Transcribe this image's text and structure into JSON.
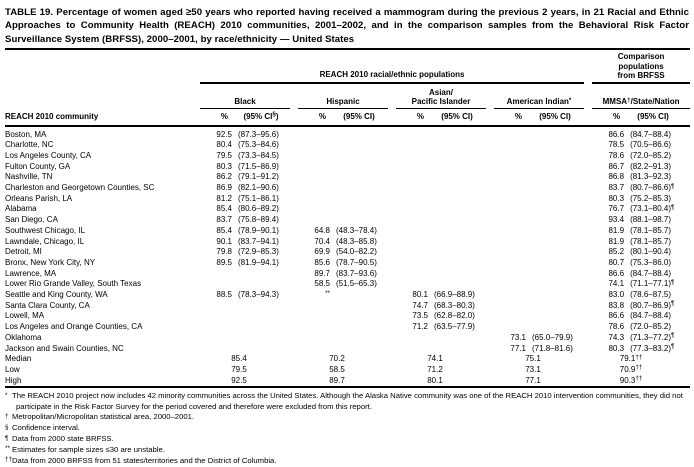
{
  "title": "TABLE 19. Percentage of women aged ≥50 years who reported having received a mammogram during the previous 2 years, in 21 Racial and Ethnic Approaches to Community Health (REACH) 2010 communities, 2001–2002, and in the comparison samples from the Behavioral Risk Factor Surveillance System (BRFSS), 2000–2001, by race/ethnicity — United States",
  "header": {
    "reach_span": "REACH 2010 racial/ethnic populations",
    "comparison_span": "Comparison\npopulations\nfrom BRFSS",
    "row_label": "REACH 2010 community",
    "groups": [
      {
        "label": "Black",
        "pct": "%",
        "ci": "(95% CI§)"
      },
      {
        "label": "Hispanic",
        "pct": "%",
        "ci": "(95% CI)"
      },
      {
        "label": "Asian/\nPacific Islander",
        "pct": "%",
        "ci": "(95% CI)"
      },
      {
        "label": "American Indian*",
        "pct": "%",
        "ci": "(95% CI)"
      },
      {
        "label": "MMSA†/State/Nation",
        "pct": "%",
        "ci": "(95% CI)"
      }
    ]
  },
  "rows": [
    {
      "community": "Boston, MA",
      "black": [
        "92.5",
        "(87.3–95.6)"
      ],
      "hispanic": [
        "",
        ""
      ],
      "asian": [
        "",
        ""
      ],
      "american_indian": [
        "",
        ""
      ],
      "mmsa": [
        "86.6",
        "(84.7–88.4)"
      ]
    },
    {
      "community": "Charlotte, NC",
      "black": [
        "80.4",
        "(75.3–84.6)"
      ],
      "hispanic": [
        "",
        ""
      ],
      "asian": [
        "",
        ""
      ],
      "american_indian": [
        "",
        ""
      ],
      "mmsa": [
        "78.5",
        "(70.5–86.6)"
      ]
    },
    {
      "community": "Los Angeles County, CA",
      "black": [
        "79.5",
        "(73.3–84.5)"
      ],
      "hispanic": [
        "",
        ""
      ],
      "asian": [
        "",
        ""
      ],
      "american_indian": [
        "",
        ""
      ],
      "mmsa": [
        "78.6",
        "(72.0–85.2)"
      ]
    },
    {
      "community": "Fulton County, GA",
      "black": [
        "80.3",
        "(71.5–86.9)"
      ],
      "hispanic": [
        "",
        ""
      ],
      "asian": [
        "",
        ""
      ],
      "american_indian": [
        "",
        ""
      ],
      "mmsa": [
        "86.7",
        "(82.2–91.3)"
      ]
    },
    {
      "community": "Nashville, TN",
      "black": [
        "86.2",
        "(79.1–91.2)"
      ],
      "hispanic": [
        "",
        ""
      ],
      "asian": [
        "",
        ""
      ],
      "american_indian": [
        "",
        ""
      ],
      "mmsa": [
        "86.8",
        "(81.3–92.3)"
      ]
    },
    {
      "community": "Charleston and Georgetown Counties, SC",
      "black": [
        "86.9",
        "(82.1–90.6)"
      ],
      "hispanic": [
        "",
        ""
      ],
      "asian": [
        "",
        ""
      ],
      "american_indian": [
        "",
        ""
      ],
      "mmsa": [
        "83.7",
        "(80.7–86.6)¶"
      ]
    },
    {
      "community": "Orleans Parish, LA",
      "black": [
        "81.2",
        "(75.1–86.1)"
      ],
      "hispanic": [
        "",
        ""
      ],
      "asian": [
        "",
        ""
      ],
      "american_indian": [
        "",
        ""
      ],
      "mmsa": [
        "80.3",
        "(75.2–85.3)"
      ]
    },
    {
      "community": "Alabama",
      "black": [
        "85.4",
        "(80.6–89.2)"
      ],
      "hispanic": [
        "",
        ""
      ],
      "asian": [
        "",
        ""
      ],
      "american_indian": [
        "",
        ""
      ],
      "mmsa": [
        "76.7",
        "(73.1–80.4)¶"
      ]
    },
    {
      "community": "San Diego, CA",
      "black": [
        "83.7",
        "(75.8–89.4)"
      ],
      "hispanic": [
        "",
        ""
      ],
      "asian": [
        "",
        ""
      ],
      "american_indian": [
        "",
        ""
      ],
      "mmsa": [
        "93.4",
        "(88.1–98.7)"
      ]
    },
    {
      "community": "Southwest Chicago, IL",
      "black": [
        "85.4",
        "(78.9–90.1)"
      ],
      "hispanic": [
        "64.8",
        "(48.3–78.4)"
      ],
      "asian": [
        "",
        ""
      ],
      "american_indian": [
        "",
        ""
      ],
      "mmsa": [
        "81.9",
        "(78.1–85.7)"
      ]
    },
    {
      "community": "Lawndale, Chicago, IL",
      "black": [
        "90.1",
        "(83.7–94.1)"
      ],
      "hispanic": [
        "70.4",
        "(48.3–85.8)"
      ],
      "asian": [
        "",
        ""
      ],
      "american_indian": [
        "",
        ""
      ],
      "mmsa": [
        "81.9",
        "(78.1–85.7)"
      ]
    },
    {
      "community": "Detroit, MI",
      "black": [
        "79.8",
        "(72.9–85.3)"
      ],
      "hispanic": [
        "69.9",
        "(54.0–82.2)"
      ],
      "asian": [
        "",
        ""
      ],
      "american_indian": [
        "",
        ""
      ],
      "mmsa": [
        "85.2",
        "(80.1–90.4)"
      ]
    },
    {
      "community": "Bronx, New York City, NY",
      "black": [
        "89.5",
        "(81.9–94.1)"
      ],
      "hispanic": [
        "85.6",
        "(78.7–90.5)"
      ],
      "asian": [
        "",
        ""
      ],
      "american_indian": [
        "",
        ""
      ],
      "mmsa": [
        "80.7",
        "(75.3–86.0)"
      ]
    },
    {
      "community": "Lawrence, MA",
      "black": [
        "",
        ""
      ],
      "hispanic": [
        "89.7",
        "(83.7–93.6)"
      ],
      "asian": [
        "",
        ""
      ],
      "american_indian": [
        "",
        ""
      ],
      "mmsa": [
        "86.6",
        "(84.7–88.4)"
      ]
    },
    {
      "community": "Lower Rio Grande Valley, South Texas",
      "black": [
        "",
        ""
      ],
      "hispanic": [
        "58.5",
        "(51.5–65.3)"
      ],
      "asian": [
        "",
        ""
      ],
      "american_indian": [
        "",
        ""
      ],
      "mmsa": [
        "74.1",
        "(71.1–77.1)¶"
      ]
    },
    {
      "community": "Seattle and King County, WA",
      "black": [
        "88.5",
        "(78.3–94.3)"
      ],
      "hispanic": [
        "**",
        ""
      ],
      "asian": [
        "80.1",
        "(66.9–88.9)"
      ],
      "american_indian": [
        "",
        ""
      ],
      "mmsa": [
        "83.0",
        "(78.6–87.5)"
      ]
    },
    {
      "community": "Santa Clara County, CA",
      "black": [
        "",
        ""
      ],
      "hispanic": [
        "",
        ""
      ],
      "asian": [
        "74.7",
        "(68.3–80.3)"
      ],
      "american_indian": [
        "",
        ""
      ],
      "mmsa": [
        "83.8",
        "(80.7–86.9)¶"
      ]
    },
    {
      "community": "Lowell, MA",
      "black": [
        "",
        ""
      ],
      "hispanic": [
        "",
        ""
      ],
      "asian": [
        "73.5",
        "(62.8–82.0)"
      ],
      "american_indian": [
        "",
        ""
      ],
      "mmsa": [
        "86.6",
        "(84.7–88.4)"
      ]
    },
    {
      "community": "Los Angeles and Orange Counties, CA",
      "black": [
        "",
        ""
      ],
      "hispanic": [
        "",
        ""
      ],
      "asian": [
        "71.2",
        "(63.5–77.9)"
      ],
      "american_indian": [
        "",
        ""
      ],
      "mmsa": [
        "78.6",
        "(72.0–85.2)"
      ]
    },
    {
      "community": "Oklahoma",
      "black": [
        "",
        ""
      ],
      "hispanic": [
        "",
        ""
      ],
      "asian": [
        "",
        ""
      ],
      "american_indian": [
        "73.1",
        "(65.0–79.9)"
      ],
      "mmsa": [
        "74.3",
        "(71.3–77.2)¶"
      ]
    },
    {
      "community": "Jackson and Swain Counties, NC",
      "black": [
        "",
        ""
      ],
      "hispanic": [
        "",
        ""
      ],
      "asian": [
        "",
        ""
      ],
      "american_indian": [
        "77.1",
        "(71.8–81.6)"
      ],
      "mmsa": [
        "80.3",
        "(77.3–83.2)¶"
      ]
    }
  ],
  "summary_rows": [
    {
      "label": "Median",
      "black": "85.4",
      "hispanic": "70.2",
      "asian": "74.1",
      "american_indian": "75.1",
      "mmsa": "79.1††"
    },
    {
      "label": "Low",
      "black": "79.5",
      "hispanic": "58.5",
      "asian": "71.2",
      "american_indian": "73.1",
      "mmsa": "70.9††"
    },
    {
      "label": "High",
      "black": "92.5",
      "hispanic": "89.7",
      "asian": "80.1",
      "american_indian": "77.1",
      "mmsa": "90.3††"
    }
  ],
  "footnotes": [
    {
      "marker": "*",
      "text": "The REACH 2010 project now includes 42 minority communities across the United States. Although the Alaska Native community was one of the REACH 2010 intervention communities, they did not participate in the Risk Factor Survey for the period covered and therefore were excluded from this report."
    },
    {
      "marker": "†",
      "text": "Metropolitan/Micropolitan statistical area, 2000–2001."
    },
    {
      "marker": "§",
      "text": "Confidence interval."
    },
    {
      "marker": "¶",
      "text": "Data from 2000 state BRFSS."
    },
    {
      "marker": "**",
      "text": "Estimates for sample sizes ≤30 are unstable."
    },
    {
      "marker": "††",
      "text": "Data from 2000 BRFSS from 51 states/territories and the District of Columbia."
    }
  ]
}
